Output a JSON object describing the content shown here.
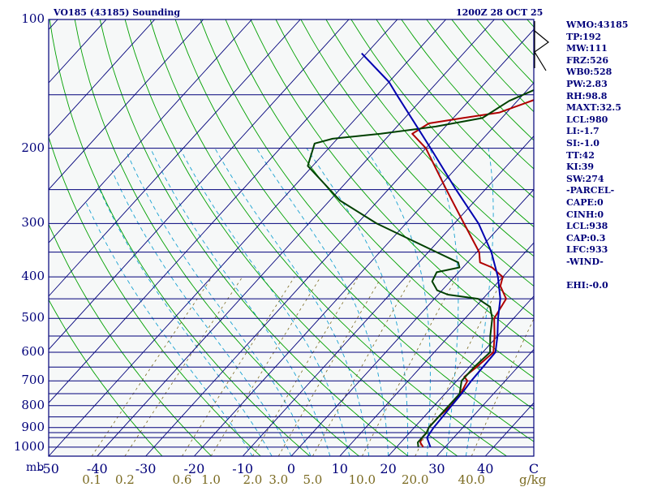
{
  "header": {
    "station_title": "VO185 (43185) Sounding",
    "time_title": "1200Z 28 OCT 25"
  },
  "indices": [
    "WMO:43185",
    "TP:192",
    "MW:111",
    "FRZ:526",
    "WB0:528",
    "PW:2.83",
    "RH:98.8",
    "MAXT:32.5",
    "LCL:980",
    "LI:-1.7",
    "SI:-1.0",
    "TT:42",
    "KI:39",
    "SW:274",
    "-PARCEL-",
    "CAPE:0",
    "CINH:0",
    "LCL:938",
    "CAP:0.3",
    "LFC:933",
    "-WIND-",
    "",
    "EHI:-0.0"
  ],
  "colors": {
    "background": "#f6f8f8",
    "frame": "#00007a",
    "isobar": "#00007a",
    "isotherm": "#00007a",
    "dry_adiabat": "#00a000",
    "moist_adiabat": "#19a2d2",
    "mixing_ratio": "#7a6a20",
    "temperature": "#b00000",
    "dewpoint": "#004000",
    "parcel": "#0000b0",
    "wind": "#000000"
  },
  "chart_data": {
    "type": "line",
    "title": "VO185 (43185) Sounding",
    "subtitle": "1200Z 28 OCT 25",
    "xlabel": "C",
    "ylabel": "mb",
    "pressure_scale": "log",
    "pressure_range": [
      1050,
      100
    ],
    "temperature_range": [
      -50,
      50
    ],
    "skew": "skew-T",
    "y_ticks": [
      {
        "p": 1000,
        "label": "1000"
      },
      {
        "p": 900,
        "label": "900"
      },
      {
        "p": 800,
        "label": "800"
      },
      {
        "p": 700,
        "label": "700"
      },
      {
        "p": 600,
        "label": "600"
      },
      {
        "p": 500,
        "label": "500"
      },
      {
        "p": 400,
        "label": "400"
      },
      {
        "p": 300,
        "label": "300"
      },
      {
        "p": 200,
        "label": "200"
      },
      {
        "p": 100,
        "label": "100"
      }
    ],
    "isobars": [
      1050,
      1000,
      950,
      925,
      900,
      850,
      800,
      750,
      700,
      650,
      600,
      550,
      500,
      450,
      400,
      350,
      300,
      250,
      200,
      150,
      100
    ],
    "x_ticks": [
      {
        "t": -50,
        "label": "-50"
      },
      {
        "t": -40,
        "label": "-40"
      },
      {
        "t": -30,
        "label": "-30"
      },
      {
        "t": -20,
        "label": "-20"
      },
      {
        "t": -10,
        "label": "-10"
      },
      {
        "t": 0,
        "label": "0"
      },
      {
        "t": 10,
        "label": "10"
      },
      {
        "t": 20,
        "label": "20"
      },
      {
        "t": 30,
        "label": "30"
      },
      {
        "t": 40,
        "label": "40"
      }
    ],
    "mixing_ratio_ticks": [
      {
        "w": 0.1,
        "label": "0.1"
      },
      {
        "w": 0.2,
        "label": "0.2"
      },
      {
        "w": 0.6,
        "label": "0.6"
      },
      {
        "w": 1.0,
        "label": "1.0"
      },
      {
        "w": 2.0,
        "label": "2.0"
      },
      {
        "w": 3.0,
        "label": "3.0"
      },
      {
        "w": 5.0,
        "label": "5.0"
      },
      {
        "w": 10.0,
        "label": "10.0"
      },
      {
        "w": 20.0,
        "label": "20.0"
      },
      {
        "w": 40.0,
        "label": "40.0"
      }
    ],
    "mixing_ratio_unit": "g/kg",
    "series": [
      {
        "key": "temperature",
        "points": [
          [
            1000,
            25.5
          ],
          [
            975,
            24.0
          ],
          [
            950,
            23.5
          ],
          [
            925,
            23.5
          ],
          [
            900,
            23.0
          ],
          [
            850,
            23.0
          ],
          [
            800,
            23.5
          ],
          [
            750,
            23.2
          ],
          [
            700,
            22.2
          ],
          [
            685,
            20.8
          ],
          [
            650,
            21.5
          ],
          [
            600,
            22.2
          ],
          [
            550,
            19.4
          ],
          [
            500,
            16.0
          ],
          [
            450,
            14.8
          ],
          [
            420,
            11.2
          ],
          [
            400,
            10.0
          ],
          [
            380,
            6.0
          ],
          [
            370,
            2.6
          ],
          [
            350,
            0.5
          ],
          [
            300,
            -8.0
          ],
          [
            250,
            -18.0
          ],
          [
            200,
            -30.0
          ],
          [
            185,
            -35.5
          ],
          [
            175,
            -34.0
          ],
          [
            170,
            -28.0
          ],
          [
            165,
            -21.5
          ],
          [
            120,
            1.0
          ],
          [
            110,
            10.0
          ],
          [
            100,
            21.0
          ]
        ]
      },
      {
        "key": "dewpoint",
        "points": [
          [
            1000,
            24.5
          ],
          [
            975,
            23.5
          ],
          [
            950,
            23.5
          ],
          [
            925,
            23.5
          ],
          [
            900,
            23.0
          ],
          [
            850,
            23.0
          ],
          [
            800,
            23.0
          ],
          [
            750,
            23.0
          ],
          [
            700,
            21.0
          ],
          [
            650,
            21.0
          ],
          [
            600,
            21.5
          ],
          [
            550,
            18.5
          ],
          [
            500,
            15.6
          ],
          [
            470,
            13.0
          ],
          [
            450,
            9.0
          ],
          [
            440,
            2.0
          ],
          [
            430,
            -1.0
          ],
          [
            410,
            -3.7
          ],
          [
            390,
            -4.5
          ],
          [
            380,
            -0.7
          ],
          [
            370,
            -1.9
          ],
          [
            350,
            -8.3
          ],
          [
            300,
            -26.0
          ],
          [
            265,
            -37.9
          ],
          [
            220,
            -51.0
          ],
          [
            195,
            -53.8
          ],
          [
            190,
            -51.0
          ],
          [
            185,
            -42.0
          ],
          [
            178,
            -32.0
          ],
          [
            170,
            -24.0
          ],
          [
            155,
            -21.7
          ],
          [
            120,
            -8.2
          ],
          [
            100,
            0.8
          ]
        ]
      },
      {
        "key": "parcel",
        "points": [
          [
            1000,
            27.0
          ],
          [
            950,
            24.5
          ],
          [
            900,
            24.0
          ],
          [
            850,
            23.8
          ],
          [
            800,
            23.6
          ],
          [
            750,
            23.4
          ],
          [
            700,
            23.0
          ],
          [
            650,
            22.8
          ],
          [
            600,
            22.6
          ],
          [
            550,
            20.0
          ],
          [
            500,
            16.8
          ],
          [
            450,
            13.6
          ],
          [
            400,
            9.0
          ],
          [
            350,
            3.0
          ],
          [
            300,
            -5.0
          ],
          [
            250,
            -16.0
          ],
          [
            200,
            -29.0
          ],
          [
            150,
            -46.0
          ],
          [
            140,
            -50.0
          ],
          [
            120,
            -61.0
          ]
        ]
      }
    ],
    "wind_barbs": [
      {
        "p": 100,
        "shape": "arrow"
      }
    ]
  }
}
